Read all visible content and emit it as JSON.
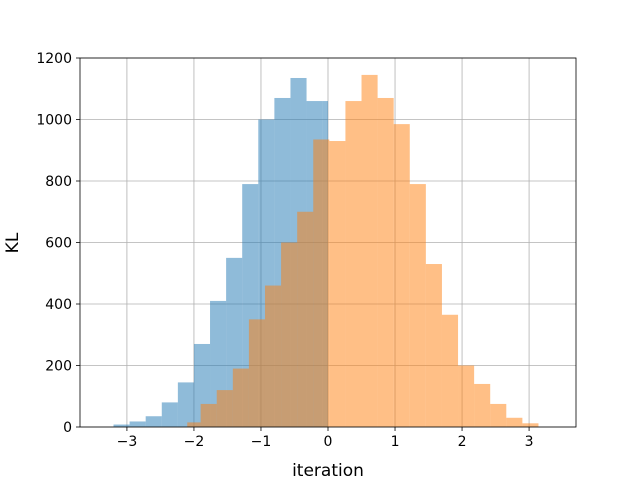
{
  "chart_data": {
    "type": "bar",
    "subtype": "histogram",
    "title": "",
    "xlabel": "iteration",
    "ylabel": "KL",
    "xlim": [
      -3.7,
      3.7
    ],
    "ylim": [
      0,
      1200
    ],
    "xticks": [
      -3,
      -2,
      -1,
      0,
      1,
      2,
      3
    ],
    "xtick_labels": [
      "−3",
      "−2",
      "−1",
      "0",
      "1",
      "2",
      "3"
    ],
    "yticks": [
      0,
      200,
      400,
      600,
      800,
      1000,
      1200
    ],
    "ytick_labels": [
      "0",
      "200",
      "400",
      "600",
      "800",
      "1000",
      "1200"
    ],
    "grid": true,
    "legend": "none",
    "series": [
      {
        "color": "#1f77b4",
        "opacity": 0.5,
        "bin_edges": [
          -3.2,
          -2.96,
          -2.72,
          -2.48,
          -2.24,
          -2.0,
          -1.76,
          -1.52,
          -1.28,
          -1.04,
          -0.8,
          -0.56,
          -0.32,
          -0.08,
          0.0
        ],
        "counts": [
          8,
          18,
          35,
          80,
          145,
          270,
          410,
          550,
          790,
          1000,
          1070,
          1135,
          1060,
          1060
        ]
      },
      {
        "color": "#ff7f0e",
        "opacity": 0.5,
        "bin_edges": [
          -2.1,
          -1.9,
          -1.66,
          -1.42,
          -1.18,
          -0.94,
          -0.7,
          -0.46,
          -0.22,
          0.02,
          0.26,
          0.5,
          0.74,
          0.98,
          1.22,
          1.46,
          1.7,
          1.94,
          2.18,
          2.42,
          2.66,
          2.9,
          3.14
        ],
        "counts": [
          15,
          75,
          120,
          190,
          350,
          460,
          600,
          700,
          935,
          930,
          1060,
          1145,
          1070,
          985,
          790,
          530,
          365,
          200,
          140,
          75,
          30,
          12
        ]
      }
    ]
  }
}
